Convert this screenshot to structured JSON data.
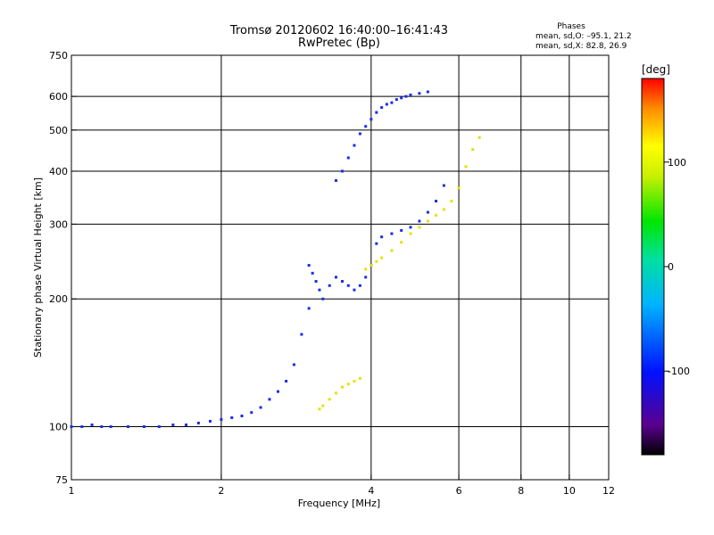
{
  "chart_data": {
    "type": "scatter",
    "title": "Tromsø 20120602 16:40:00–16:41:43",
    "subtitle": "RwPretec (Bp)",
    "xlabel": "Frequency [MHz]",
    "ylabel": "Stationary phase Virtual Height [km]",
    "x_scale": "log",
    "y_scale": "log",
    "xlim": [
      1,
      12
    ],
    "ylim": [
      75,
      750
    ],
    "x_ticks": [
      1,
      2,
      4,
      6,
      8,
      10,
      12
    ],
    "y_ticks": [
      75,
      100,
      200,
      300,
      400,
      500,
      600,
      750
    ],
    "x_grid": [
      2,
      4,
      6,
      8,
      10
    ],
    "y_grid": [
      100,
      200,
      300,
      400,
      500,
      600
    ],
    "phase_stats": {
      "heading": "Phases",
      "line_o": "mean, sd,O: –95.1, 21.2",
      "line_x": "mean, sd,X:  82.8, 26.9"
    },
    "colorbar": {
      "unit_label": "[deg]",
      "range": [
        -180,
        180
      ],
      "ticks": [
        100,
        0,
        -100
      ],
      "tick_labels": [
        "100",
        "0",
        "-100"
      ]
    },
    "series": [
      {
        "mode": "O",
        "phase": -100,
        "x": [
          1.0,
          1.05,
          1.1,
          1.15,
          1.2,
          1.3,
          1.4,
          1.5,
          1.6,
          1.7,
          1.8,
          1.9,
          2.0,
          2.1,
          2.2,
          2.3,
          2.4,
          2.5,
          2.6,
          2.7,
          2.8,
          2.9,
          3.0,
          3.0,
          3.05,
          3.1,
          3.15,
          3.2,
          3.3,
          3.4,
          3.5,
          3.6,
          3.7,
          3.8,
          3.9,
          4.0,
          4.1,
          4.2,
          4.4,
          4.6,
          4.8,
          5.0,
          5.2,
          5.4,
          5.6,
          3.4,
          3.5,
          3.6,
          3.7,
          3.8,
          3.9,
          4.0,
          4.1,
          4.2,
          4.3,
          4.4,
          4.5,
          4.6,
          4.7,
          4.8,
          5.0,
          5.2
        ],
        "y": [
          100,
          100,
          101,
          100,
          100,
          100,
          100,
          100,
          101,
          101,
          102,
          103,
          104,
          105,
          106,
          108,
          111,
          116,
          121,
          128,
          140,
          165,
          190,
          240,
          230,
          220,
          210,
          200,
          215,
          225,
          220,
          215,
          210,
          215,
          225,
          240,
          270,
          280,
          285,
          290,
          295,
          305,
          320,
          340,
          370,
          380,
          400,
          430,
          460,
          490,
          510,
          530,
          550,
          565,
          575,
          580,
          590,
          595,
          600,
          605,
          610,
          615
        ]
      },
      {
        "mode": "X",
        "phase": 100,
        "x": [
          3.15,
          3.2,
          3.3,
          3.4,
          3.5,
          3.6,
          3.7,
          3.8,
          3.9,
          4.0,
          4.1,
          4.2,
          4.4,
          4.6,
          4.8,
          5.0,
          5.2,
          5.4,
          5.6,
          5.8,
          6.0,
          6.2,
          6.4,
          6.6
        ],
        "y": [
          110,
          112,
          116,
          120,
          124,
          126,
          128,
          130,
          235,
          240,
          245,
          250,
          260,
          272,
          285,
          295,
          305,
          315,
          325,
          340,
          365,
          410,
          450,
          480
        ]
      }
    ]
  }
}
